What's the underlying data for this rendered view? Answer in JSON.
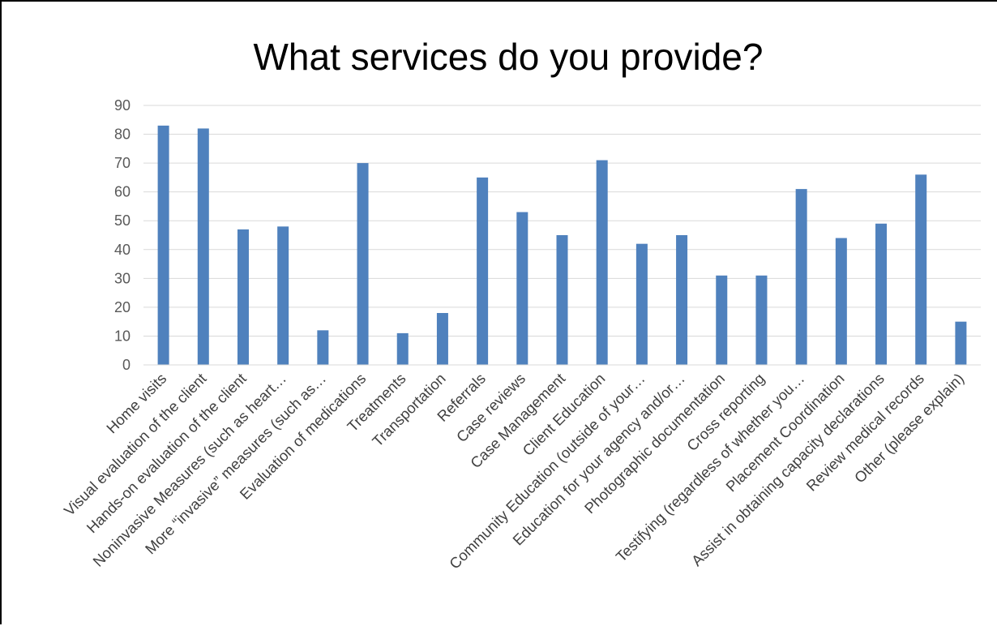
{
  "chart_data": {
    "type": "bar",
    "title": "What services do you provide?",
    "xlabel": "",
    "ylabel": "",
    "ylim": [
      0,
      90
    ],
    "yticks": [
      0,
      10,
      20,
      30,
      40,
      50,
      60,
      70,
      80,
      90
    ],
    "grid": true,
    "legend": "none",
    "bar_color": "#4f81bd",
    "gridline_color": "#d9d9d9",
    "categories": [
      "Home visits",
      "Visual evaluation of the client",
      "Hands-on evaluation of the client",
      "Noninvasive Measures (such as heart…",
      "More “invasive” measures (such as…",
      "Evaluation of medications",
      "Treatments",
      "Transportation",
      "Referrals",
      "Case reviews",
      "Case Management",
      "Client Education",
      "Community Education (outside of your…",
      "Education for your agency and/or…",
      "Photographic documentation",
      "Cross reporting",
      "Testifying (regardless of whether you…",
      "Placement Coordination",
      "Assist in obtaining capacity declarations",
      "Review medical records",
      "Other (please explain)"
    ],
    "values": [
      83,
      82,
      47,
      48,
      12,
      70,
      11,
      18,
      65,
      53,
      45,
      71,
      42,
      45,
      31,
      31,
      61,
      44,
      49,
      66,
      15
    ]
  }
}
